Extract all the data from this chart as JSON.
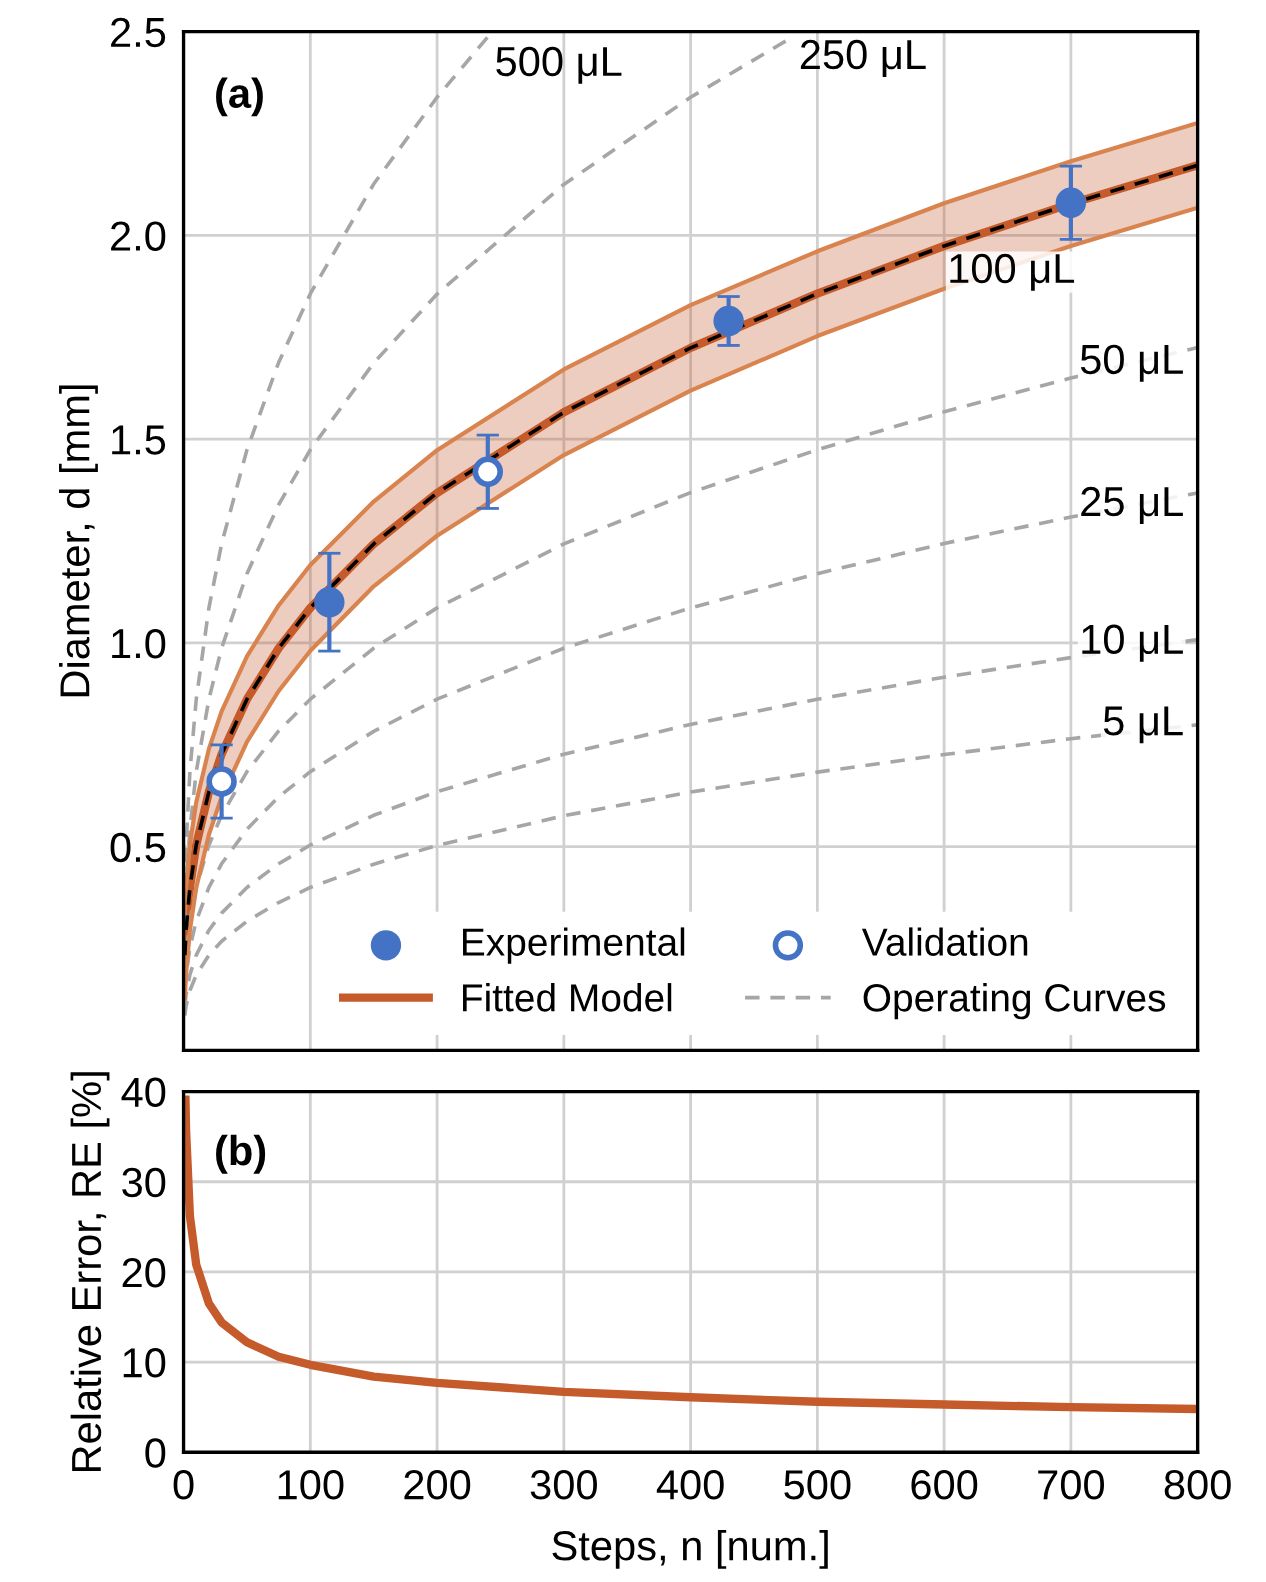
{
  "chart_data": [
    {
      "type": "line",
      "ylabel": "Diameter, d [mm]",
      "annotations": [
        "(a)",
        {
          "text": "500 μL",
          "x": 230,
          "y": 2.452
        },
        {
          "text": "250 μL",
          "x": 470,
          "y": 2.469
        },
        {
          "text": "100 μL",
          "x": 653,
          "y": 1.91
        },
        {
          "text": "50 μL",
          "x": 748,
          "y": 1.687
        },
        {
          "text": "25 μL",
          "x": 748,
          "y": 1.338
        },
        {
          "text": "10 μL",
          "x": 748,
          "y": 1.0
        },
        {
          "text": "5 μL",
          "x": 757,
          "y": 0.8
        }
      ],
      "xlim": [
        0,
        800
      ],
      "xticks": [
        0,
        100,
        200,
        300,
        400,
        500,
        600,
        700,
        800
      ],
      "ylim": [
        0,
        2.5
      ],
      "yticks": [
        0.5,
        {
          "value": 1,
          "label": "1.0"
        },
        1.5,
        {
          "value": 2,
          "label": "2.0"
        },
        2.5
      ],
      "tick_labels": "y",
      "grid": true,
      "legend": "bottom right",
      "series": [
        {
          "name": "Experimental",
          "type": "scatter",
          "marker": "circle",
          "color": "#4472c4",
          "x": [
            115,
            430,
            700
          ],
          "values": [
            1.1,
            1.79,
            2.08
          ],
          "errors": [
            0.12,
            0.06,
            0.09
          ]
        },
        {
          "name": "Fitted Model",
          "type": "line",
          "line_style": "solid",
          "color": "#c55a2b",
          "x": [
            1,
            2,
            5,
            10,
            20,
            30,
            50,
            75,
            100,
            150,
            200,
            300,
            400,
            500,
            600,
            700,
            800
          ],
          "values": [
            0.234,
            0.295,
            0.4,
            0.504,
            0.635,
            0.727,
            0.862,
            0.987,
            1.086,
            1.243,
            1.368,
            1.566,
            1.724,
            1.857,
            1.974,
            2.078,
            2.172
          ],
          "lower": [
            0.129,
            0.19,
            0.295,
            0.399,
            0.53,
            0.622,
            0.757,
            0.882,
            0.981,
            1.139,
            1.263,
            1.461,
            1.619,
            1.753,
            1.869,
            1.974,
            2.068
          ],
          "upper": [
            0.339,
            0.4,
            0.505,
            0.609,
            0.74,
            0.832,
            0.967,
            1.092,
            1.191,
            1.347,
            1.473,
            1.671,
            1.829,
            1.961,
            2.079,
            2.182,
            2.276
          ]
        },
        {
          "name": "Validation",
          "type": "scatter",
          "marker": "circle",
          "color": "#4472c4",
          "x": [
            30,
            240
          ],
          "values": [
            0.66,
            1.42
          ],
          "errors": [
            0.09,
            0.09
          ]
        },
        {
          "name": "Operating Curves",
          "type": "line",
          "line_style": "dashed",
          "color": "#a6a6a6",
          "x": [
            1,
            2,
            5,
            10,
            20,
            30,
            50,
            75,
            100,
            150,
            200,
            300,
            400,
            500,
            600,
            700,
            800
          ],
          "values": [
            0.086,
            0.109,
            0.147,
            0.185,
            0.234,
            0.268,
            0.317,
            0.363,
            0.4,
            0.457,
            0.503,
            0.576,
            0.634,
            0.683,
            0.726,
            0.765,
            0.799
          ]
        },
        {
          "type": "line",
          "line_style": "dashed",
          "color": "#a6a6a6",
          "x": [
            1,
            2,
            5,
            10,
            20,
            30,
            50,
            75,
            100,
            150,
            200,
            300,
            400,
            500,
            600,
            700,
            800
          ],
          "values": [
            0.109,
            0.137,
            0.186,
            0.234,
            0.295,
            0.337,
            0.4,
            0.458,
            0.504,
            0.577,
            0.635,
            0.727,
            0.8,
            0.862,
            0.916,
            0.964,
            1.008
          ]
        },
        {
          "type": "line",
          "line_style": "dashed",
          "color": "#a6a6a6",
          "x": [
            1,
            2,
            5,
            10,
            20,
            30,
            50,
            75,
            100,
            150,
            200,
            300,
            400,
            500,
            600,
            700,
            800
          ],
          "values": [
            0.147,
            0.186,
            0.252,
            0.318,
            0.4,
            0.458,
            0.543,
            0.622,
            0.684,
            0.783,
            0.862,
            0.987,
            1.086,
            1.17,
            1.244,
            1.309,
            1.368
          ]
        },
        {
          "type": "line",
          "line_style": "dashed",
          "color": "#a6a6a6",
          "x": [
            1,
            2,
            5,
            10,
            20,
            30,
            50,
            75,
            100,
            150,
            200,
            300,
            400,
            500,
            600,
            700,
            800
          ],
          "values": [
            0.186,
            0.234,
            0.318,
            0.4,
            0.504,
            0.577,
            0.684,
            0.784,
            0.862,
            0.987,
            1.086,
            1.243,
            1.369,
            1.474,
            1.567,
            1.65,
            1.725
          ]
        },
        {
          "type": "line",
          "line_style": "dashed",
          "color": "#a6a6a6",
          "x": [
            1,
            2,
            5,
            10,
            20,
            30,
            50,
            75,
            100,
            150,
            200,
            300,
            400,
            480
          ],
          "values": [
            0.318,
            0.4,
            0.543,
            0.684,
            0.862,
            0.987,
            1.17,
            1.339,
            1.474,
            1.687,
            1.856,
            2.125,
            2.339,
            2.486
          ]
        },
        {
          "type": "line",
          "line_style": "dashed",
          "color": "#a6a6a6",
          "x": [
            1,
            2,
            5,
            10,
            20,
            30,
            50,
            75,
            100,
            150,
            200,
            240
          ],
          "values": [
            0.4,
            0.504,
            0.684,
            0.862,
            1.086,
            1.243,
            1.474,
            1.688,
            1.857,
            2.126,
            2.339,
            2.487
          ]
        },
        {
          "type": "line",
          "line_style": "solid",
          "color": "#d9834f",
          "x": [
            1,
            2,
            5,
            10,
            20,
            30,
            50,
            75,
            100,
            150,
            200,
            300,
            400,
            500,
            600,
            700,
            800
          ],
          "values": [
            0.129,
            0.19,
            0.295,
            0.399,
            0.53,
            0.622,
            0.757,
            0.882,
            0.981,
            1.139,
            1.263,
            1.461,
            1.619,
            1.753,
            1.869,
            1.974,
            2.068
          ]
        },
        {
          "type": "line",
          "line_style": "solid",
          "color": "#d9834f",
          "x": [
            1,
            2,
            5,
            10,
            20,
            30,
            50,
            75,
            100,
            150,
            200,
            300,
            400,
            500,
            600,
            700,
            800
          ],
          "values": [
            0.339,
            0.4,
            0.505,
            0.609,
            0.74,
            0.832,
            0.967,
            1.092,
            1.191,
            1.347,
            1.473,
            1.671,
            1.829,
            1.961,
            2.079,
            2.182,
            2.276
          ]
        },
        {
          "type": "line",
          "line_style": "dashed",
          "color": "#000000",
          "x": [
            1,
            2,
            5,
            10,
            20,
            30,
            50,
            75,
            100,
            150,
            200,
            300,
            400,
            500,
            600,
            700,
            800
          ],
          "values": [
            0.234,
            0.295,
            0.4,
            0.504,
            0.635,
            0.727,
            0.862,
            0.987,
            1.086,
            1.243,
            1.368,
            1.566,
            1.724,
            1.857,
            1.974,
            2.078,
            2.172
          ]
        }
      ]
    },
    {
      "type": "line",
      "xlabel": "Steps, n [num.]",
      "ylabel": "Relative Error, RE [%]",
      "annotations": [
        "(b)"
      ],
      "xlim": [
        0,
        800
      ],
      "xticks": [
        0,
        100,
        200,
        300,
        400,
        500,
        600,
        700,
        800
      ],
      "ylim": [
        0,
        40
      ],
      "yticks": [
        0,
        10,
        20,
        30,
        40
      ],
      "grid": true,
      "series": [
        {
          "color": "#c55a2b",
          "line_style": "solid",
          "x": [
            1.5,
            2,
            5,
            10,
            20,
            30,
            50,
            75,
            100,
            150,
            200,
            300,
            400,
            500,
            600,
            700,
            800
          ],
          "values": [
            39.1,
            35.6,
            26.2,
            20.8,
            16.5,
            14.4,
            12.2,
            10.6,
            9.7,
            8.4,
            7.7,
            6.7,
            6.1,
            5.6,
            5.3,
            5.0,
            4.8
          ]
        }
      ]
    }
  ]
}
